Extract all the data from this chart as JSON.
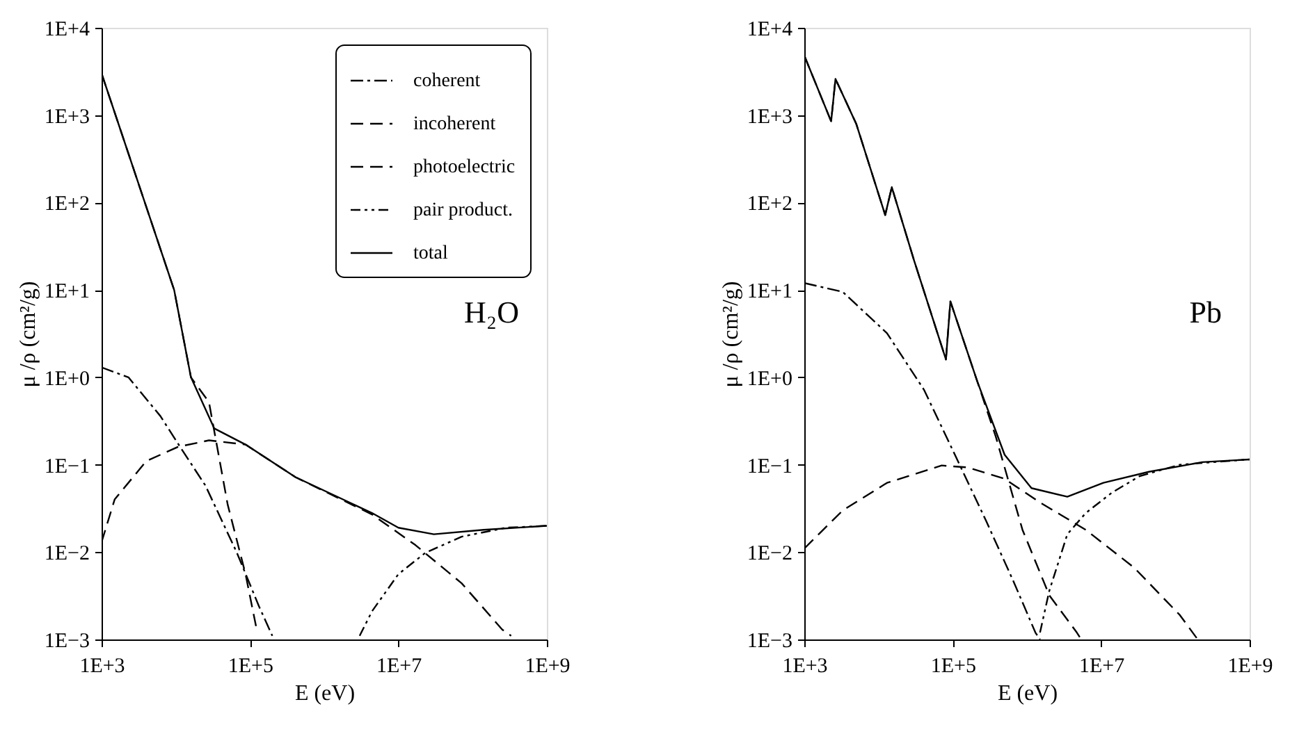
{
  "chart_data": [
    {
      "type": "line",
      "xlabel": "E (eV)",
      "ylabel": "μ /ρ (cm²/g)",
      "log": "xy",
      "grid": false,
      "legend": "top right",
      "annotations": [
        "H₂O"
      ],
      "xlim": [
        1000,
        1000000000
      ],
      "ylim": [
        0.001,
        10000
      ],
      "xticks": [
        {
          "value": 1000,
          "label": "1E+3"
        },
        {
          "value": 100000,
          "label": "1E+5"
        },
        {
          "value": 10000000,
          "label": "1E+7"
        },
        {
          "value": 1000000000,
          "label": "1E+9"
        }
      ],
      "yticks": [
        {
          "value": 0.001,
          "label": "1E−3"
        },
        {
          "value": 0.01,
          "label": "1E−2"
        },
        {
          "value": 0.1,
          "label": "1E−1"
        },
        {
          "value": 1,
          "label": "1E+0"
        },
        {
          "value": 10,
          "label": "1E+1"
        },
        {
          "value": 100,
          "label": "1E+2"
        },
        {
          "value": 1000,
          "label": "1E+3"
        },
        {
          "value": 10000,
          "label": "1E+4"
        }
      ],
      "series": [
        {
          "name": "coherent",
          "color": "#000000",
          "line_style": "dashdot",
          "x": [
            1000,
            2300,
            6200,
            12000,
            25000,
            66000,
            132000,
            200000
          ],
          "values": [
            1.3,
            1.0,
            0.36,
            0.15,
            0.058,
            0.01,
            0.0024,
            0.0011
          ]
        },
        {
          "name": "incoherent",
          "color": "#000000",
          "line_style": "dashed",
          "x": [
            1000,
            1500,
            4000,
            10700,
            28000,
            87000,
            410000,
            4400000,
            17000000,
            71000000,
            250000000,
            330000000
          ],
          "values": [
            0.013,
            0.04,
            0.11,
            0.16,
            0.19,
            0.17,
            0.072,
            0.027,
            0.012,
            0.0044,
            0.0013,
            0.0011
          ]
        },
        {
          "name": "photoelectric",
          "color": "#000000",
          "line_style": "dashed",
          "x": [
            1000,
            9500,
            16000,
            28000,
            50000,
            87000,
            123000
          ],
          "values": [
            3000,
            10,
            1,
            0.52,
            0.035,
            0.0056,
            0.0013
          ]
        },
        {
          "name": "pair product.",
          "color": "#000000",
          "line_style": "dashdotdot",
          "x": [
            3000000,
            4400000,
            10000000,
            23000000,
            71000000,
            280000000,
            1000000000
          ],
          "values": [
            0.0011,
            0.0021,
            0.0056,
            0.0098,
            0.015,
            0.019,
            0.02
          ]
        },
        {
          "name": "total",
          "color": "#000000",
          "line_style": "solid",
          "x": [
            1000,
            9500,
            16000,
            33000,
            87000,
            410000,
            4400000,
            10000000,
            30000000,
            140000000,
            1000000000
          ],
          "values": [
            3000,
            10,
            1,
            0.26,
            0.17,
            0.072,
            0.028,
            0.019,
            0.016,
            0.018,
            0.02
          ]
        }
      ]
    },
    {
      "type": "line",
      "xlabel": "E (eV)",
      "ylabel": "μ /ρ (cm²/g)",
      "log": "xy",
      "grid": false,
      "legend": false,
      "annotations": [
        "Pb"
      ],
      "xlim": [
        1000,
        1000000000
      ],
      "ylim": [
        0.001,
        10000
      ],
      "xticks": [
        {
          "value": 1000,
          "label": "1E+3"
        },
        {
          "value": 100000,
          "label": "1E+5"
        },
        {
          "value": 10000000,
          "label": "1E+7"
        },
        {
          "value": 1000000000,
          "label": "1E+9"
        }
      ],
      "yticks": [
        {
          "value": 0.001,
          "label": "1E−3"
        },
        {
          "value": 0.01,
          "label": "1E−2"
        },
        {
          "value": 0.1,
          "label": "1E−1"
        },
        {
          "value": 1,
          "label": "1E+0"
        },
        {
          "value": 10,
          "label": "1E+1"
        },
        {
          "value": 100,
          "label": "1E+2"
        },
        {
          "value": 1000,
          "label": "1E+3"
        },
        {
          "value": 10000,
          "label": "1E+4"
        }
      ],
      "series": [
        {
          "color": "#000000",
          "line_style": "dashdot",
          "x": [
            1000,
            3300,
            13000,
            41000,
            107000,
            280000,
            660000,
            1300000,
            1500000
          ],
          "values": [
            12,
            9.5,
            3.2,
            0.72,
            0.13,
            0.023,
            0.0046,
            0.0012,
            0.001
          ]
        },
        {
          "color": "#000000",
          "line_style": "dashed",
          "x": [
            1000,
            3300,
            13000,
            71000,
            160000,
            500000,
            1500000,
            6200000,
            28000000,
            115000000,
            200000000
          ],
          "values": [
            0.011,
            0.03,
            0.062,
            0.098,
            0.093,
            0.069,
            0.037,
            0.018,
            0.0066,
            0.0019,
            0.001
          ]
        },
        {
          "color": "#000000",
          "line_style": "dashed",
          "x": [
            1000,
            2300,
            2630,
            5000,
            12300,
            15100,
            30000,
            81000,
            93000,
            214000,
            380000,
            870000,
            2000000,
            4700000,
            5400000
          ],
          "values": [
            4800,
            850,
            2600,
            800,
            72,
            150,
            22,
            1.6,
            7.4,
            0.9,
            0.21,
            0.018,
            0.0032,
            0.0012,
            0.001
          ]
        },
        {
          "color": "#000000",
          "line_style": "dashdotdot",
          "x": [
            1500000,
            2000000,
            3500000,
            6200000,
            14000000,
            33000000,
            115000000,
            1000000000
          ],
          "values": [
            0.0012,
            0.0036,
            0.016,
            0.028,
            0.048,
            0.074,
            0.1,
            0.115
          ]
        },
        {
          "color": "#000000",
          "line_style": "solid",
          "x": [
            1000,
            2300,
            2630,
            5000,
            12300,
            15100,
            30000,
            81000,
            93000,
            214000,
            500000,
            1150000,
            3500000,
            10700000,
            44000000,
            230000000,
            1000000000
          ],
          "values": [
            4800,
            850,
            2600,
            800,
            72,
            150,
            22,
            1.6,
            7.4,
            0.9,
            0.13,
            0.054,
            0.043,
            0.062,
            0.083,
            0.107,
            0.115
          ]
        }
      ]
    }
  ]
}
